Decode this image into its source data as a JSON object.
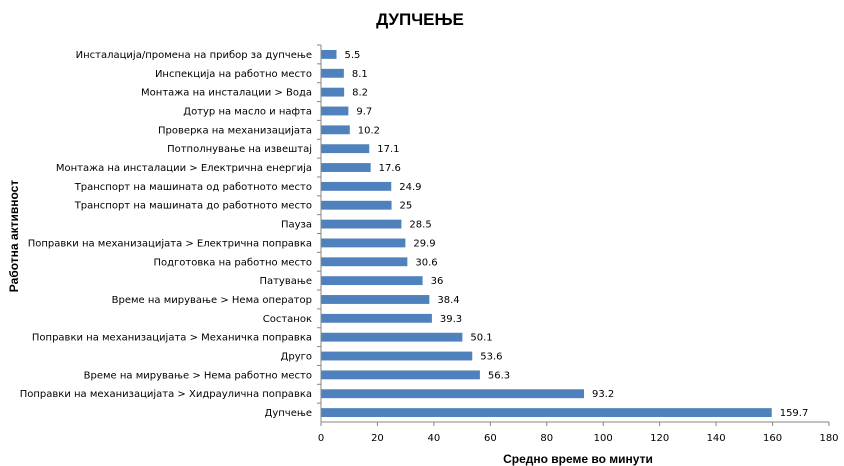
{
  "chart_data": {
    "type": "bar",
    "orientation": "horizontal",
    "title": "ДУПЧЕЊЕ",
    "xlabel": "Средно време во минути",
    "ylabel": "Работна активност",
    "xlim": [
      0,
      180
    ],
    "xticks": [
      "0",
      "20",
      "40",
      "60",
      "80",
      "100",
      "120",
      "140",
      "160",
      "180"
    ],
    "grid": false,
    "legend": "none",
    "bar_color": "#4f81bd",
    "categories": [
      "Инсталација/промена на прибор за дупчење",
      "Инспекција на работно место",
      "Монтажа на инсталации > Вода",
      "Дотур на масло и нафта",
      "Проверка на механизацијата",
      "Потполнување на извештај",
      "Монтажа на инсталации > Електрична енергија",
      "Транспорт на машината од работното место",
      "Транспорт на машината до работното место",
      "Пауза",
      "Поправки на механизацијата > Електрична поправка",
      "Подготовка на работно место",
      "Патување",
      "Време на мирување > Нема оператор",
      "Состанок",
      "Поправки на механизацијата > Механичка поправка",
      "Друго",
      "Време на мирување > Нема работно место",
      "Поправки на механизацијата > Хидраулична поправка",
      "Дупчење"
    ],
    "values": [
      5.5,
      8.1,
      8.2,
      9.7,
      10.2,
      17.1,
      17.6,
      24.9,
      25,
      28.5,
      29.9,
      30.6,
      36,
      38.4,
      39.3,
      50.1,
      53.6,
      56.3,
      93.2,
      159.7
    ],
    "value_labels": [
      "5.5",
      "8.1",
      "8.2",
      "9.7",
      "10.2",
      "17.1",
      "17.6",
      "24.9",
      "25",
      "28.5",
      "29.9",
      "30.6",
      "36",
      "38.4",
      "39.3",
      "50.1",
      "53.6",
      "56.3",
      "93.2",
      "159.7"
    ]
  }
}
